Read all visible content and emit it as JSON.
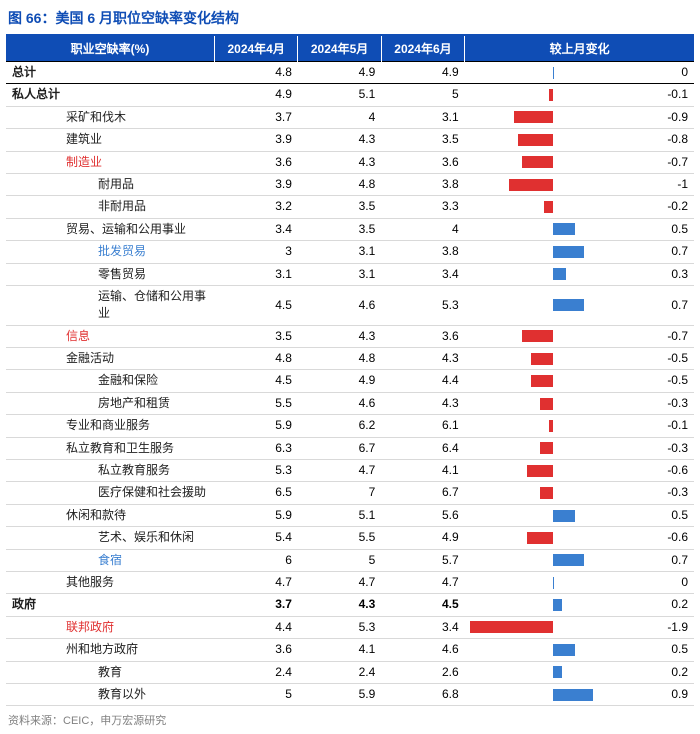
{
  "title": "图 66：美国 6 月职位空缺率变化结构",
  "source": "资料来源：CEIC，申万宏源研究",
  "columns": {
    "c0": "职业空缺率(%)",
    "c1": "2024年4月",
    "c2": "2024年5月",
    "c3": "2024年6月",
    "c4": "较上月变化"
  },
  "style": {
    "neg_color": "#e03030",
    "pos_color": "#3a7fd0",
    "header_bg": "#0f4db5",
    "bar_scale_pct_per_unit": 26
  },
  "rows": [
    {
      "label": "总计",
      "indent": 0,
      "color": "plain",
      "bold": true,
      "top": true,
      "v": [
        4.8,
        4.9,
        4.9
      ],
      "d": 0
    },
    {
      "label": "私人总计",
      "indent": 0,
      "color": "plain",
      "bold": true,
      "v": [
        4.9,
        5.1,
        5
      ],
      "d": -0.1
    },
    {
      "label": "采矿和伐木",
      "indent": 2,
      "color": "plain",
      "v": [
        3.7,
        4,
        3.1
      ],
      "d": -0.9
    },
    {
      "label": "建筑业",
      "indent": 2,
      "color": "plain",
      "v": [
        3.9,
        4.3,
        3.5
      ],
      "d": -0.8
    },
    {
      "label": "制造业",
      "indent": 2,
      "color": "red",
      "v": [
        3.6,
        4.3,
        3.6
      ],
      "d": -0.7
    },
    {
      "label": "耐用品",
      "indent": 3,
      "color": "plain",
      "v": [
        3.9,
        4.8,
        3.8
      ],
      "d": -1
    },
    {
      "label": "非耐用品",
      "indent": 3,
      "color": "plain",
      "v": [
        3.2,
        3.5,
        3.3
      ],
      "d": -0.2
    },
    {
      "label": "贸易、运输和公用事业",
      "indent": 2,
      "color": "plain",
      "v": [
        3.4,
        3.5,
        4
      ],
      "d": 0.5
    },
    {
      "label": "批发贸易",
      "indent": 3,
      "color": "blue",
      "v": [
        3,
        3.1,
        3.8
      ],
      "d": 0.7
    },
    {
      "label": "零售贸易",
      "indent": 3,
      "color": "plain",
      "v": [
        3.1,
        3.1,
        3.4
      ],
      "d": 0.3
    },
    {
      "label": "运输、仓储和公用事业",
      "indent": 3,
      "color": "plain",
      "v": [
        4.5,
        4.6,
        5.3
      ],
      "d": 0.7
    },
    {
      "label": "信息",
      "indent": 2,
      "color": "red",
      "v": [
        3.5,
        4.3,
        3.6
      ],
      "d": -0.7
    },
    {
      "label": "金融活动",
      "indent": 2,
      "color": "plain",
      "v": [
        4.8,
        4.8,
        4.3
      ],
      "d": -0.5
    },
    {
      "label": "金融和保险",
      "indent": 3,
      "color": "plain",
      "v": [
        4.5,
        4.9,
        4.4
      ],
      "d": -0.5
    },
    {
      "label": "房地产和租赁",
      "indent": 3,
      "color": "plain",
      "v": [
        5.5,
        4.6,
        4.3
      ],
      "d": -0.3
    },
    {
      "label": "专业和商业服务",
      "indent": 2,
      "color": "plain",
      "v": [
        5.9,
        6.2,
        6.1
      ],
      "d": -0.1
    },
    {
      "label": "私立教育和卫生服务",
      "indent": 2,
      "color": "plain",
      "v": [
        6.3,
        6.7,
        6.4
      ],
      "d": -0.3
    },
    {
      "label": "私立教育服务",
      "indent": 3,
      "color": "plain",
      "v": [
        5.3,
        4.7,
        4.1
      ],
      "d": -0.6
    },
    {
      "label": "医疗保健和社会援助",
      "indent": 3,
      "color": "plain",
      "v": [
        6.5,
        7,
        6.7
      ],
      "d": -0.3
    },
    {
      "label": "休闲和款待",
      "indent": 2,
      "color": "plain",
      "v": [
        5.9,
        5.1,
        5.6
      ],
      "d": 0.5
    },
    {
      "label": "艺术、娱乐和休闲",
      "indent": 3,
      "color": "plain",
      "v": [
        5.4,
        5.5,
        4.9
      ],
      "d": -0.6
    },
    {
      "label": "食宿",
      "indent": 3,
      "color": "blue",
      "v": [
        6,
        5,
        5.7
      ],
      "d": 0.7
    },
    {
      "label": "其他服务",
      "indent": 2,
      "color": "plain",
      "v": [
        4.7,
        4.7,
        4.7
      ],
      "d": 0
    },
    {
      "label": "政府",
      "indent": 0,
      "color": "plain",
      "bold": true,
      "bvals": true,
      "v": [
        3.7,
        4.3,
        4.5
      ],
      "d": 0.2
    },
    {
      "label": "联邦政府",
      "indent": 2,
      "color": "red",
      "v": [
        4.4,
        5.3,
        3.4
      ],
      "d": -1.9
    },
    {
      "label": "州和地方政府",
      "indent": 2,
      "color": "plain",
      "v": [
        3.6,
        4.1,
        4.6
      ],
      "d": 0.5
    },
    {
      "label": "教育",
      "indent": 3,
      "color": "plain",
      "v": [
        2.4,
        2.4,
        2.6
      ],
      "d": 0.2
    },
    {
      "label": "教育以外",
      "indent": 3,
      "color": "plain",
      "v": [
        5,
        5.9,
        6.8
      ],
      "d": 0.9
    }
  ]
}
